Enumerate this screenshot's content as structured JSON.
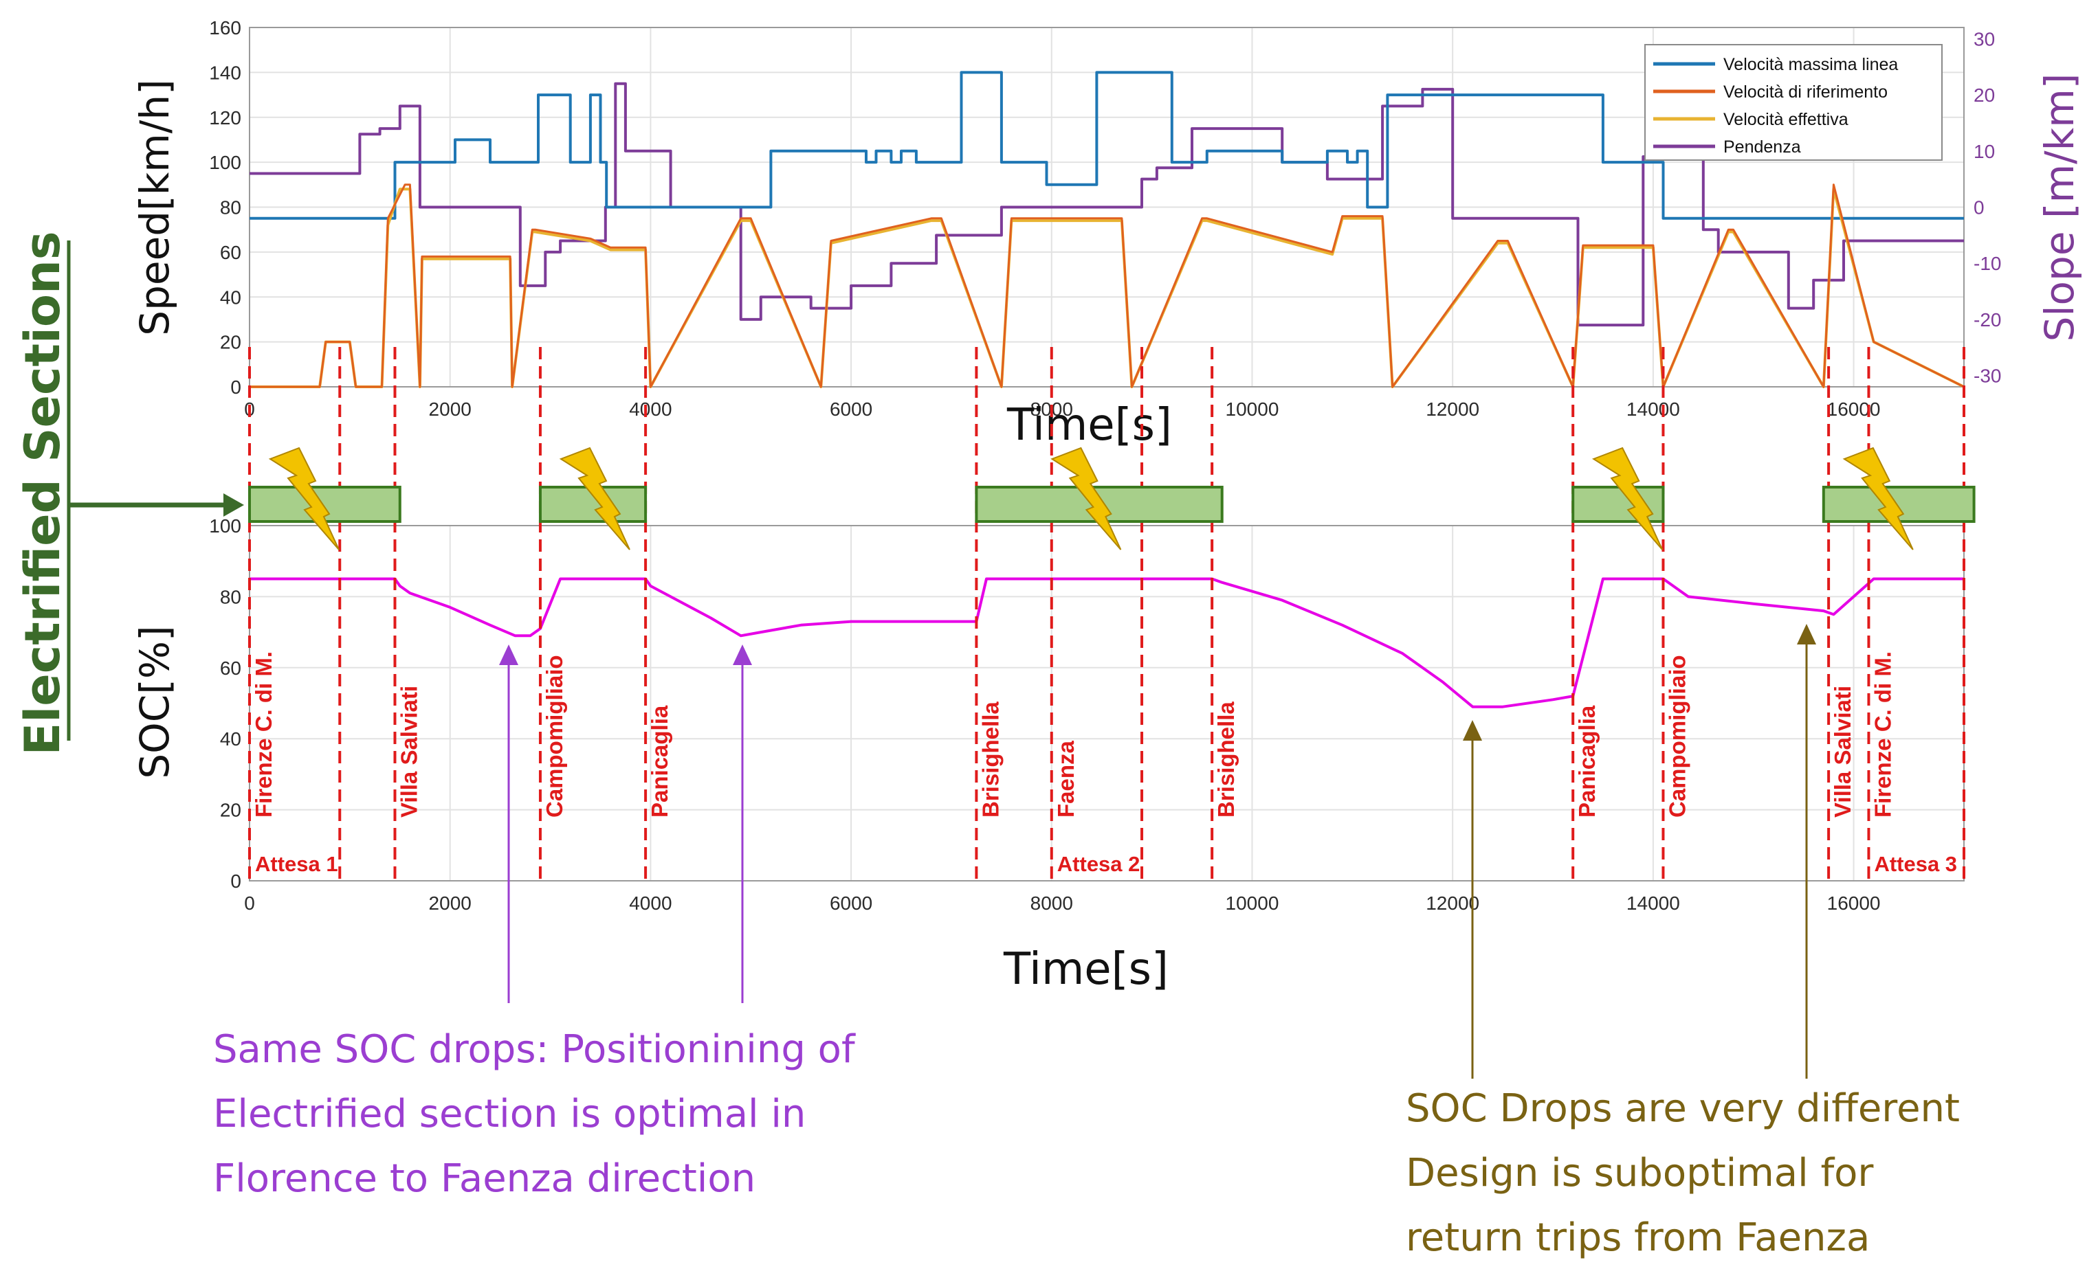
{
  "chart_data": [
    {
      "type": "line",
      "ylabel": "Speed[km/h]",
      "ylabel_right": "Slope [m/km]",
      "xlabel": "Time[s]",
      "xlim": [
        0,
        17100
      ],
      "ylim": [
        0,
        160
      ],
      "ylim_right": [
        -32,
        32
      ],
      "xticks": [
        0,
        2000,
        4000,
        6000,
        8000,
        10000,
        12000,
        14000,
        16000
      ],
      "yticks": [
        0,
        20,
        40,
        60,
        80,
        100,
        120,
        140,
        160
      ],
      "yticks_right": [
        -30,
        -20,
        -10,
        0,
        10,
        20,
        30
      ],
      "grid": true,
      "legend_position": "top-right",
      "series": [
        {
          "name": "Velocità massima linea",
          "color": "#1f77b4",
          "x": [
            0,
            1450,
            1450,
            2050,
            2050,
            2400,
            2400,
            2750,
            2750,
            2880,
            2880,
            3200,
            3200,
            3400,
            3400,
            3500,
            3500,
            3560,
            3560,
            5200,
            5200,
            6150,
            6150,
            6250,
            6250,
            6400,
            6400,
            6500,
            6500,
            6650,
            6650,
            7100,
            7100,
            7500,
            7500,
            7850,
            7850,
            7950,
            7950,
            8450,
            8450,
            9200,
            9200,
            9450,
            9450,
            9550,
            9550,
            10300,
            10300,
            10750,
            10750,
            10950,
            10950,
            11050,
            11050,
            11150,
            11150,
            11350,
            11350,
            13500,
            13500,
            13750,
            13750,
            14100,
            14100,
            15400,
            15400,
            17100
          ],
          "y": [
            75,
            75,
            100,
            100,
            110,
            110,
            100,
            100,
            100,
            100,
            130,
            130,
            100,
            100,
            130,
            130,
            100,
            100,
            80,
            80,
            105,
            105,
            100,
            100,
            105,
            105,
            100,
            100,
            105,
            105,
            100,
            100,
            140,
            140,
            100,
            100,
            100,
            100,
            90,
            90,
            140,
            140,
            100,
            100,
            100,
            100,
            105,
            105,
            100,
            100,
            105,
            105,
            100,
            100,
            105,
            105,
            80,
            80,
            130,
            130,
            100,
            100,
            100,
            100,
            75,
            75,
            75,
            75
          ]
        },
        {
          "name": "Velocità di riferimento",
          "color": "#e0611f",
          "x": [
            0,
            700,
            760,
            1000,
            1060,
            1320,
            1380,
            1550,
            1600,
            1700,
            1720,
            2600,
            2620,
            2820,
            2850,
            3400,
            3600,
            3950,
            4000,
            4900,
            5000,
            5700,
            5800,
            6800,
            6900,
            7500,
            7600,
            8700,
            8800,
            9500,
            9550,
            10800,
            10900,
            11300,
            11400,
            12450,
            12550,
            13200,
            13300,
            14000,
            14100,
            14750,
            14800,
            15700,
            15800,
            16200,
            17100
          ],
          "y": [
            0,
            0,
            20,
            20,
            0,
            0,
            75,
            90,
            90,
            0,
            58,
            58,
            0,
            70,
            70,
            66,
            62,
            62,
            0,
            75,
            75,
            0,
            65,
            75,
            75,
            0,
            75,
            75,
            0,
            75,
            75,
            60,
            76,
            76,
            0,
            65,
            65,
            0,
            63,
            63,
            0,
            70,
            70,
            0,
            90,
            20,
            0
          ]
        },
        {
          "name": "Velocità effettiva",
          "color": "#e8b331",
          "x": [
            0,
            700,
            760,
            1000,
            1060,
            1320,
            1380,
            1500,
            1600,
            1700,
            1720,
            2600,
            2620,
            2820,
            2850,
            3400,
            3600,
            3950,
            4000,
            4900,
            5000,
            5700,
            5800,
            6800,
            6900,
            7500,
            7600,
            8700,
            8800,
            9500,
            9550,
            10800,
            10900,
            11300,
            11400,
            12450,
            12550,
            13200,
            13300,
            14000,
            14100,
            14750,
            14800,
            15700,
            15800,
            16200,
            17100
          ],
          "y": [
            0,
            0,
            20,
            20,
            0,
            0,
            72,
            88,
            88,
            0,
            57,
            57,
            0,
            69,
            69,
            65,
            61,
            61,
            0,
            74,
            74,
            0,
            64,
            74,
            74,
            0,
            74,
            74,
            0,
            74,
            74,
            59,
            75,
            75,
            0,
            64,
            64,
            0,
            62,
            62,
            0,
            69,
            69,
            0,
            88,
            20,
            0
          ]
        },
        {
          "name": "Pendenza",
          "axis": "right",
          "color": "#7d3c98",
          "x": [
            0,
            1100,
            1100,
            1300,
            1300,
            1500,
            1500,
            1700,
            1700,
            2700,
            2700,
            2950,
            2950,
            3100,
            3100,
            3550,
            3550,
            3650,
            3650,
            3750,
            3750,
            4200,
            4200,
            4900,
            4900,
            5100,
            5100,
            5600,
            5600,
            6000,
            6000,
            6400,
            6400,
            6850,
            6850,
            7500,
            7500,
            8900,
            8900,
            9050,
            9050,
            9400,
            9400,
            10300,
            10300,
            10750,
            10750,
            11300,
            11300,
            11700,
            11700,
            12000,
            12000,
            13250,
            13250,
            13900,
            13900,
            14500,
            14500,
            14650,
            14650,
            15350,
            15350,
            15600,
            15600,
            15900,
            15900,
            17100
          ],
          "y": [
            6,
            6,
            13,
            13,
            14,
            14,
            18,
            18,
            0,
            0,
            -14,
            -14,
            -8,
            -8,
            -6,
            -6,
            0,
            0,
            22,
            22,
            10,
            10,
            0,
            0,
            -20,
            -20,
            -16,
            -16,
            -18,
            -18,
            -14,
            -14,
            -10,
            -10,
            -5,
            -5,
            0,
            0,
            5,
            5,
            7,
            7,
            14,
            14,
            8,
            8,
            5,
            5,
            18,
            18,
            21,
            21,
            -2,
            -2,
            -21,
            -21,
            9,
            9,
            -4,
            -4,
            -8,
            -8,
            -18,
            -18,
            -13,
            -13,
            -6,
            -6
          ]
        }
      ],
      "stations": [
        {
          "x": 0,
          "label": "Firenze C. di M."
        },
        {
          "x": 900,
          "label": ""
        },
        {
          "x": 1450,
          "label": "Villa Salviati"
        },
        {
          "x": 2900,
          "label": "Campomigliaio"
        },
        {
          "x": 3950,
          "label": "Panicaglia"
        },
        {
          "x": 7250,
          "label": "Brisighella"
        },
        {
          "x": 8000,
          "label": "Faenza"
        },
        {
          "x": 8900,
          "label": ""
        },
        {
          "x": 9600,
          "label": "Brisighella"
        },
        {
          "x": 13200,
          "label": "Panicaglia"
        },
        {
          "x": 14100,
          "label": "Campomigliaio"
        },
        {
          "x": 15750,
          "label": "Villa Salviati"
        },
        {
          "x": 16150,
          "label": "Firenze C. di M."
        },
        {
          "x": 17100,
          "label": ""
        }
      ]
    },
    {
      "type": "line",
      "ylabel": "SOC[%]",
      "xlabel": "Time[s]",
      "xlim": [
        0,
        17100
      ],
      "ylim": [
        0,
        100
      ],
      "xticks": [
        0,
        2000,
        4000,
        6000,
        8000,
        10000,
        12000,
        14000,
        16000
      ],
      "yticks": [
        0,
        20,
        40,
        60,
        80,
        100
      ],
      "grid": true,
      "series": [
        {
          "color": "#e600e6",
          "x": [
            0,
            1450,
            1500,
            1600,
            2000,
            2400,
            2650,
            2800,
            2900,
            3100,
            3950,
            4000,
            4200,
            4600,
            4900,
            5100,
            5500,
            6000,
            6500,
            7000,
            7250,
            7350,
            8000,
            9600,
            9700,
            10300,
            10900,
            11500,
            11900,
            12200,
            12500,
            13000,
            13200,
            13500,
            14100,
            14350,
            15000,
            15700,
            15800,
            16200,
            17100
          ],
          "y": [
            85,
            85,
            83,
            81,
            77,
            72,
            69,
            69,
            71,
            85,
            85,
            83,
            80,
            74,
            69,
            70,
            72,
            73,
            73,
            73,
            73,
            85,
            85,
            85,
            84,
            79,
            72,
            64,
            56,
            49,
            49,
            51,
            52,
            85,
            85,
            80,
            78,
            76,
            75,
            85,
            85
          ]
        }
      ],
      "annotations": [
        "Attesa 1",
        "Attesa 2",
        "Attesa 3"
      ]
    }
  ],
  "electrified_label": "Electrified  Sections",
  "electrified_sections": [
    {
      "start": 0,
      "end": 1500
    },
    {
      "start": 2900,
      "end": 3950
    },
    {
      "start": 7250,
      "end": 9700
    },
    {
      "start": 13200,
      "end": 14100
    },
    {
      "start": 15700,
      "end": 17200
    }
  ],
  "annotations": {
    "left_text": [
      "Same SOC drops: Positionining of",
      "Electrified section is optimal in",
      "Florence to Faenza direction"
    ],
    "left_color": "#9b3ed1",
    "right_text": [
      "SOC Drops are very different",
      "Design is suboptimal for",
      "return trips from Faenza"
    ],
    "right_color": "#7a6213"
  },
  "colors": {
    "station_lines": "#e01b1b",
    "electrified_fill": "#a7cf8a",
    "lightning": "#f2c200"
  }
}
